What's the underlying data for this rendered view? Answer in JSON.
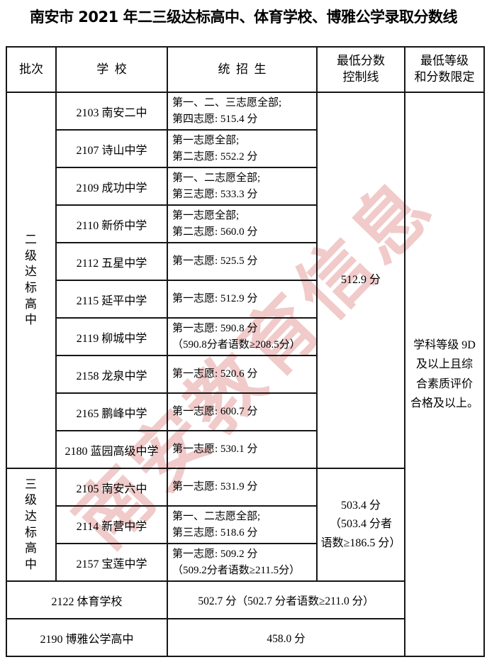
{
  "title": "南安市 2021 年二三级达标高中、体育学校、博雅公学录取分数线",
  "watermark": "南安教育信息",
  "colors": {
    "text": "#000000",
    "border": "#161616",
    "watermark_pink": "#dd8080",
    "background": "#ffffff"
  },
  "table": {
    "headers": [
      "批次",
      "学  校",
      "统  招  生",
      "最低分数\n控制线",
      "最低等级\n和分数限定"
    ],
    "grade_limit": "学科等级 9D\n及以上且综\n合素质评价\n合格及以上。",
    "sections": [
      {
        "batch": "二\n级\n达\n标\n高\n中",
        "control_line": "512.9 分",
        "rows": [
          {
            "school": "2103 南安二中",
            "detail": "第一、二、三志愿全部;\n第四志愿: 515.4 分"
          },
          {
            "school": "2107 诗山中学",
            "detail": "第一志愿全部;\n第二志愿: 552.2 分"
          },
          {
            "school": "2109 成功中学",
            "detail": "第一、二志愿全部;\n第三志愿: 533.3 分"
          },
          {
            "school": "2110 新侨中学",
            "detail": "第一志愿全部;\n第二志愿: 560.0 分"
          },
          {
            "school": "2112 五星中学",
            "detail": "第一志愿: 525.5 分"
          },
          {
            "school": "2115 延平中学",
            "detail": "第一志愿: 512.9 分"
          },
          {
            "school": "2119 柳城中学",
            "detail": "第一志愿: 590.8 分\n（590.8分者语数≥208.5分）"
          },
          {
            "school": "2158 龙泉中学",
            "detail": "第一志愿: 520.6 分"
          },
          {
            "school": "2165 鹏峰中学",
            "detail": "第一志愿: 600.7 分"
          },
          {
            "school": "2180 蓝园高级中学",
            "detail": "第一志愿: 530.1 分"
          }
        ]
      },
      {
        "batch": "三\n级\n达\n标\n高\n中",
        "control_line": "503.4 分\n（503.4 分者\n语数≥186.5 分）",
        "rows": [
          {
            "school": "2105 南安六中",
            "detail": "第一志愿: 531.9 分"
          },
          {
            "school": "2114 新营中学",
            "detail": "第一、二志愿全部;\n第三志愿: 518.6 分"
          },
          {
            "school": "2157 宝莲中学",
            "detail": "第一志愿: 509.2 分\n（509.2分者语数≥211.5分）"
          }
        ]
      }
    ],
    "footer_rows": [
      {
        "school": "2122 体育学校",
        "score": "502.7 分（502.7 分者语数≥211.0 分）"
      },
      {
        "school": "2190 博雅公学高中",
        "score": "458.0 分"
      }
    ]
  }
}
